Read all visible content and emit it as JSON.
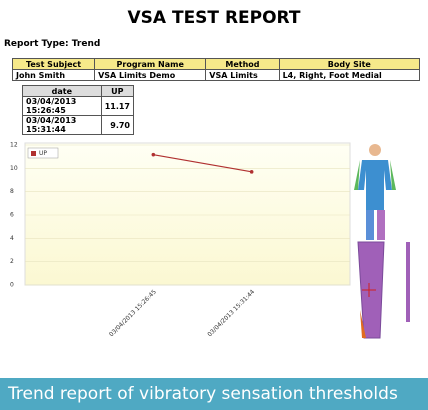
{
  "header": {
    "title": "VSA TEST REPORT",
    "report_type": "Report Type: Trend"
  },
  "subject_table": {
    "columns": [
      "Test Subject",
      "Program Name",
      "Method",
      "Body Site"
    ],
    "rows": [
      [
        "John Smith",
        "VSA Limits Demo",
        "VSA Limits",
        "L4, Right, Foot Medial"
      ]
    ]
  },
  "results_table": {
    "columns": [
      "date",
      "UP"
    ],
    "rows": [
      [
        "03/04/2013 15:26:45",
        "11.17"
      ],
      [
        "03/04/2013 15:31:44",
        "9.70"
      ]
    ]
  },
  "chart_data": {
    "type": "line",
    "categories": [
      "03/04/2013 15:26:45",
      "03/04/2013 15:31:44"
    ],
    "series": [
      {
        "name": "UP",
        "color": "#b03030",
        "values": [
          11.17,
          9.7
        ]
      }
    ],
    "ylim": [
      0,
      12
    ],
    "yticks": [
      0,
      2,
      4,
      6,
      8,
      10,
      12
    ],
    "grid": true
  },
  "caption": "Trend report of vibratory sensation thresholds"
}
